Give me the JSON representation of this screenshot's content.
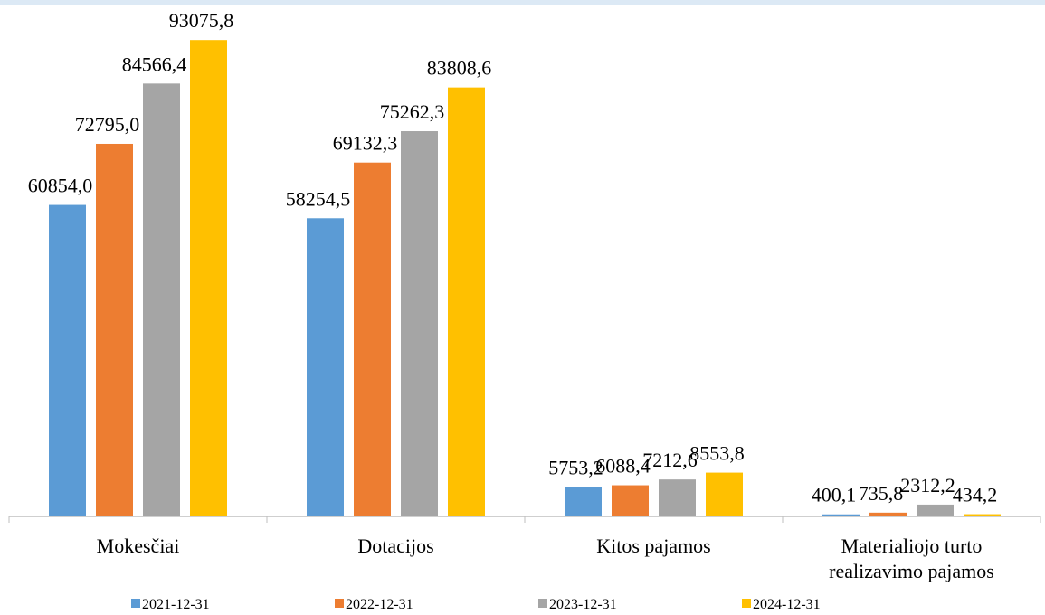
{
  "chart_data": {
    "type": "bar",
    "categories": [
      "Mokesčiai",
      "Dotacijos",
      "Kitos pajamos",
      "Materialiojo turto realizavimo pajamos"
    ],
    "series": [
      {
        "name": "2021-12-31",
        "color": "#5b9bd5",
        "values": [
          60854.0,
          58254.5,
          5753.2,
          400.1
        ],
        "value_labels": [
          "60854,0",
          "58254,5",
          "5753,2",
          "400,1"
        ]
      },
      {
        "name": "2022-12-31",
        "color": "#ed7d31",
        "values": [
          72795.0,
          69132.3,
          6088.4,
          735.8
        ],
        "value_labels": [
          "72795,0",
          "69132,3",
          "6088,4",
          "735,8"
        ]
      },
      {
        "name": "2023-12-31",
        "color": "#a5a5a5",
        "values": [
          84566.4,
          75262.3,
          7212.6,
          2312.2
        ],
        "value_labels": [
          "84566,4",
          "75262,3",
          "7212,6",
          "2312,2"
        ]
      },
      {
        "name": "2024-12-31",
        "color": "#ffc000",
        "values": [
          93075.8,
          83808.6,
          8553.8,
          434.2
        ],
        "value_labels": [
          "93075,8",
          "83808,6",
          "8553,8",
          "434,2"
        ]
      }
    ],
    "ylim": [
      0,
      100000
    ]
  }
}
